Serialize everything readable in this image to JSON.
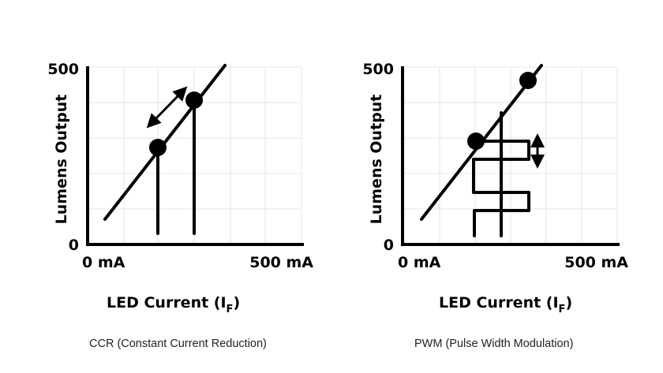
{
  "panels": [
    {
      "y_axis_label": "Lumens Output",
      "y_max": "500",
      "y_min": "0",
      "x_min": "0 mA",
      "x_max": "500 mA",
      "x_axis_label": "LED Current (I",
      "x_axis_subscript": "F",
      "x_axis_close": ")",
      "caption": "CCR (Constant Current Reduction)"
    },
    {
      "y_axis_label": "Lumens Output",
      "y_max": "500",
      "y_min": "0",
      "x_min": "0 mA",
      "x_max": "500 mA",
      "x_axis_label": "LED Current (I",
      "x_axis_subscript": "F",
      "x_axis_close": ")",
      "caption": "PWM (Pulse Width Modulation)"
    }
  ]
}
